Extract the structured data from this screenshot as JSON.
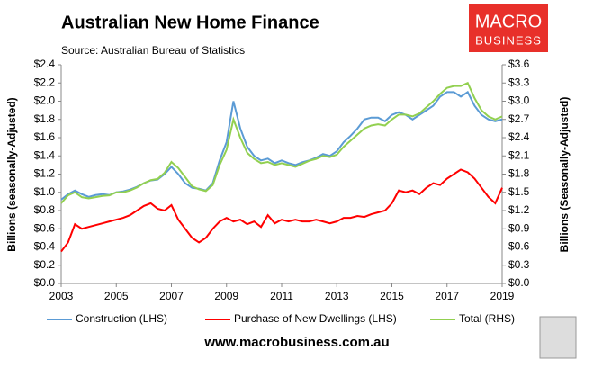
{
  "chart_data": {
    "type": "line",
    "title": "Australian New Home Finance",
    "subtitle": "Source: Australian Bureau of Statistics",
    "ylabel": "Billions (seasonally-Adjusted)",
    "y2label": "Billions (Seasonally-Adjusted)",
    "logo": [
      "MACRO",
      "BUSINESS"
    ],
    "website": "www.macrobusiness.com.au",
    "x": [
      2003,
      2003.25,
      2003.5,
      2003.75,
      2004,
      2004.25,
      2004.5,
      2004.75,
      2005,
      2005.25,
      2005.5,
      2005.75,
      2006,
      2006.25,
      2006.5,
      2006.75,
      2007,
      2007.25,
      2007.5,
      2007.75,
      2008,
      2008.25,
      2008.5,
      2008.75,
      2009,
      2009.25,
      2009.5,
      2009.75,
      2010,
      2010.25,
      2010.5,
      2010.75,
      2011,
      2011.25,
      2011.5,
      2011.75,
      2012,
      2012.25,
      2012.5,
      2012.75,
      2013,
      2013.25,
      2013.5,
      2013.75,
      2014,
      2014.25,
      2014.5,
      2014.75,
      2015,
      2015.25,
      2015.5,
      2015.75,
      2016,
      2016.25,
      2016.5,
      2016.75,
      2017,
      2017.25,
      2017.5,
      2017.75,
      2018,
      2018.25,
      2018.5,
      2018.75,
      2019
    ],
    "xlim": [
      2003,
      2019
    ],
    "xticks": [
      2003,
      2005,
      2007,
      2009,
      2011,
      2013,
      2015,
      2017,
      2019
    ],
    "ylim": [
      0,
      2.4
    ],
    "yticks": [
      {
        "value": 0,
        "label": "$0.0"
      },
      {
        "value": 0.2,
        "label": "$0.2"
      },
      {
        "value": 0.4,
        "label": "$0.4"
      },
      {
        "value": 0.6,
        "label": "$0.6"
      },
      {
        "value": 0.8,
        "label": "$0.8"
      },
      {
        "value": 1,
        "label": "$1.0"
      },
      {
        "value": 1.2,
        "label": "$1.2"
      },
      {
        "value": 1.4,
        "label": "$1.4"
      },
      {
        "value": 1.6,
        "label": "$1.6"
      },
      {
        "value": 1.8,
        "label": "$1.8"
      },
      {
        "value": 2,
        "label": "$2.0"
      },
      {
        "value": 2.2,
        "label": "$2.2"
      },
      {
        "value": 2.4,
        "label": "$2.4"
      }
    ],
    "y2lim": [
      0,
      3.6
    ],
    "y2ticks": [
      {
        "value": 0,
        "label": "$0.0"
      },
      {
        "value": 0.3,
        "label": "$0.3"
      },
      {
        "value": 0.6,
        "label": "$0.6"
      },
      {
        "value": 0.9,
        "label": "$0.9"
      },
      {
        "value": 1.2,
        "label": "$1.2"
      },
      {
        "value": 1.5,
        "label": "$1.5"
      },
      {
        "value": 1.8,
        "label": "$1.8"
      },
      {
        "value": 2.1,
        "label": "$2.1"
      },
      {
        "value": 2.4,
        "label": "$2.4"
      },
      {
        "value": 2.7,
        "label": "$2.7"
      },
      {
        "value": 3,
        "label": "$3.0"
      },
      {
        "value": 3.3,
        "label": "$3.3"
      },
      {
        "value": 3.6,
        "label": "$3.6"
      }
    ],
    "series": [
      {
        "name": "Construction (LHS)",
        "color": "#5b9bd5",
        "values": [
          0.92,
          0.98,
          1.02,
          0.98,
          0.95,
          0.97,
          0.98,
          0.97,
          1.0,
          1.01,
          1.03,
          1.06,
          1.1,
          1.13,
          1.14,
          1.2,
          1.28,
          1.2,
          1.1,
          1.05,
          1.04,
          1.02,
          1.1,
          1.35,
          1.55,
          2.0,
          1.7,
          1.5,
          1.4,
          1.35,
          1.37,
          1.32,
          1.35,
          1.32,
          1.3,
          1.33,
          1.35,
          1.38,
          1.42,
          1.4,
          1.45,
          1.55,
          1.62,
          1.7,
          1.8,
          1.82,
          1.82,
          1.78,
          1.85,
          1.88,
          1.85,
          1.8,
          1.85,
          1.9,
          1.95,
          2.05,
          2.1,
          2.1,
          2.05,
          2.1,
          1.95,
          1.85,
          1.8,
          1.78,
          1.8
        ]
      },
      {
        "name": "Purchase of New Dwellings (LHS)",
        "color": "#ff0000",
        "values": [
          0.35,
          0.45,
          0.65,
          0.6,
          0.62,
          0.64,
          0.66,
          0.68,
          0.7,
          0.72,
          0.75,
          0.8,
          0.85,
          0.88,
          0.82,
          0.8,
          0.86,
          0.7,
          0.6,
          0.5,
          0.45,
          0.5,
          0.6,
          0.68,
          0.72,
          0.68,
          0.7,
          0.65,
          0.68,
          0.62,
          0.75,
          0.66,
          0.7,
          0.68,
          0.7,
          0.68,
          0.68,
          0.7,
          0.68,
          0.66,
          0.68,
          0.72,
          0.72,
          0.74,
          0.73,
          0.76,
          0.78,
          0.8,
          0.88,
          1.02,
          1.0,
          1.02,
          0.98,
          1.05,
          1.1,
          1.08,
          1.15,
          1.2,
          1.25,
          1.22,
          1.15,
          1.05,
          0.95,
          0.88,
          1.05
        ]
      },
      {
        "name": "Total (RHS)",
        "color": "#92d050",
        "axis": "y2",
        "values": [
          1.32,
          1.45,
          1.5,
          1.42,
          1.4,
          1.42,
          1.44,
          1.45,
          1.5,
          1.5,
          1.53,
          1.58,
          1.65,
          1.7,
          1.72,
          1.82,
          2.0,
          1.9,
          1.75,
          1.6,
          1.55,
          1.52,
          1.62,
          1.95,
          2.2,
          2.7,
          2.4,
          2.15,
          2.05,
          1.98,
          2.0,
          1.95,
          1.98,
          1.95,
          1.92,
          1.97,
          2.02,
          2.05,
          2.1,
          2.08,
          2.12,
          2.25,
          2.35,
          2.45,
          2.55,
          2.6,
          2.62,
          2.6,
          2.7,
          2.78,
          2.78,
          2.75,
          2.8,
          2.9,
          3.0,
          3.12,
          3.22,
          3.25,
          3.25,
          3.3,
          3.05,
          2.85,
          2.75,
          2.7,
          2.75
        ]
      }
    ]
  }
}
